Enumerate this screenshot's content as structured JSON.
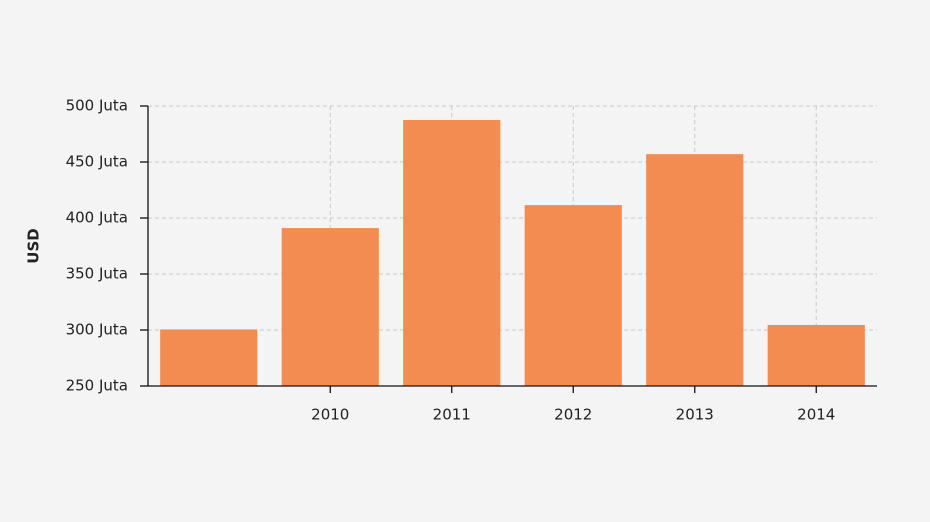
{
  "chart_data": {
    "type": "bar",
    "y_label": "USD",
    "categories": [
      null,
      "2010",
      "2011",
      "2012",
      "2013",
      "2014"
    ],
    "values": [
      300.5,
      391,
      487.5,
      411.5,
      457,
      304.5
    ],
    "color": "#f28c50",
    "ylim": [
      250,
      500
    ],
    "yticks": [
      {
        "value": 250,
        "label": "250 Juta"
      },
      {
        "value": 300,
        "label": "300 Juta"
      },
      {
        "value": 350,
        "label": "350 Juta"
      },
      {
        "value": 400,
        "label": "400 Juta"
      },
      {
        "value": 450,
        "label": "450 Juta"
      },
      {
        "value": 500,
        "label": "500 Juta"
      }
    ],
    "grid": true
  }
}
